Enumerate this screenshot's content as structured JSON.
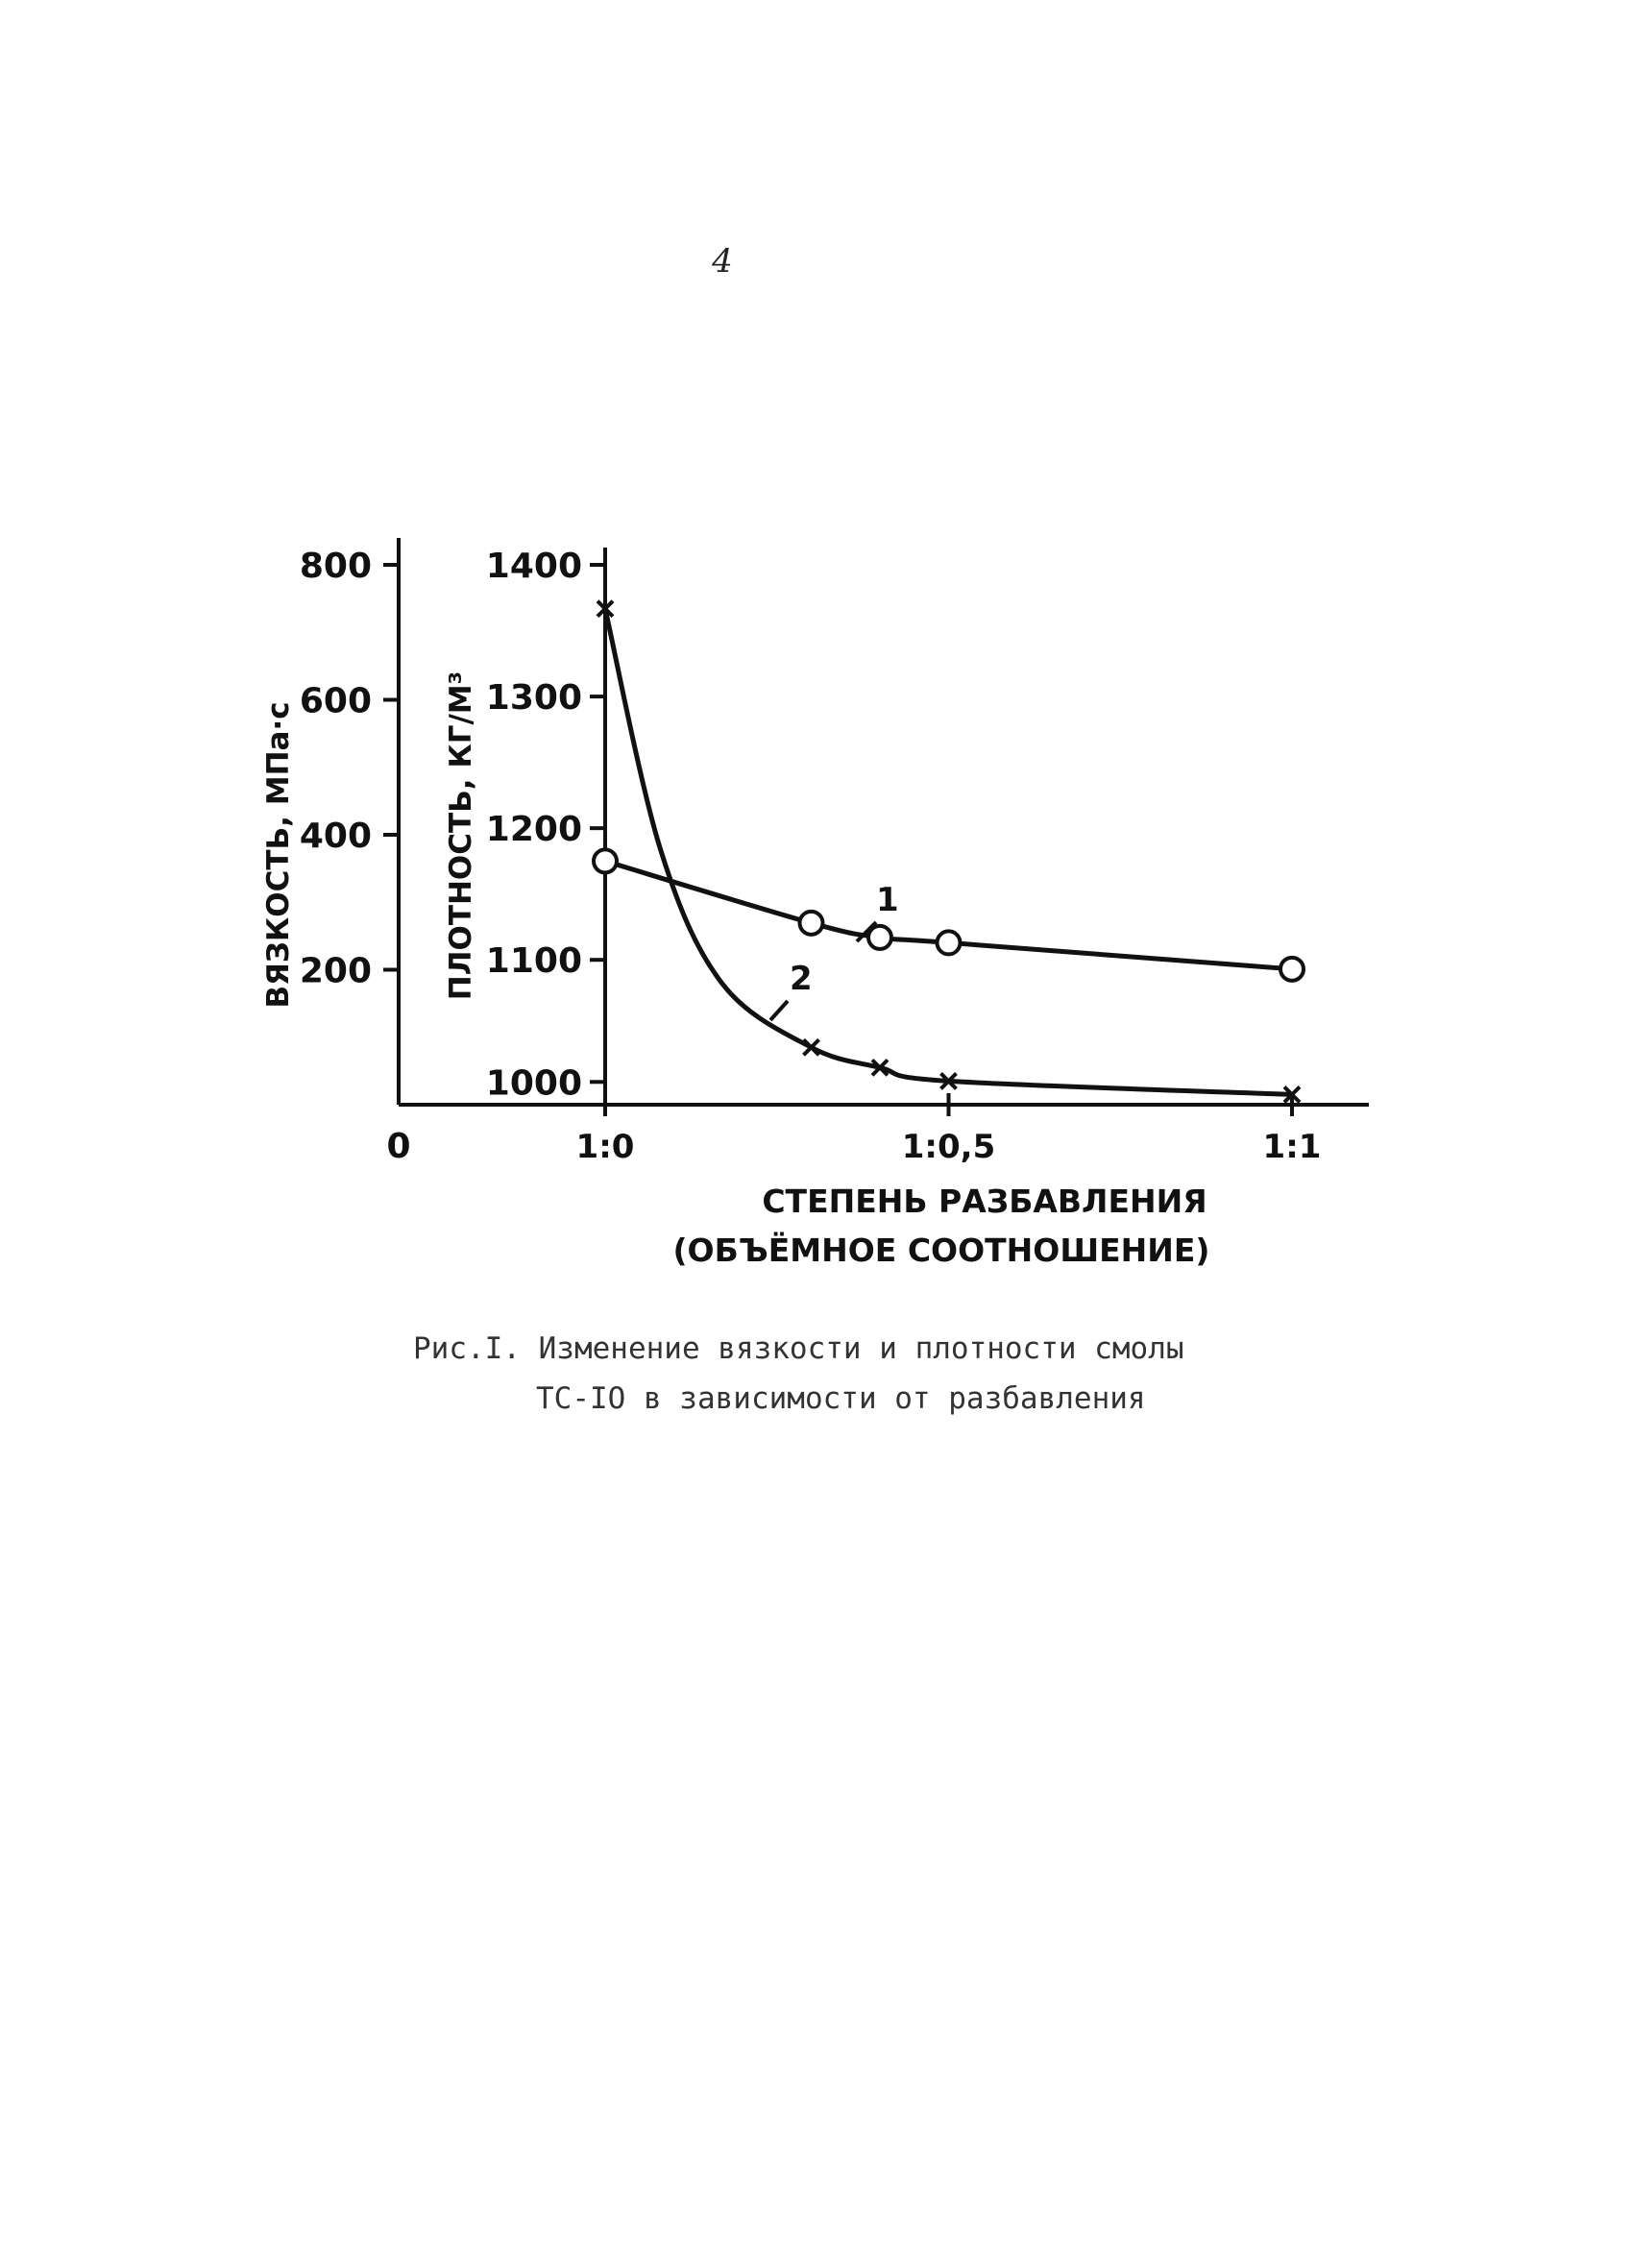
{
  "page": {
    "number": "4"
  },
  "caption": {
    "line1": "Рис.I. Изменение вязкости и плотности смолы",
    "line2": "ТС-IO в зависимости от разбавления"
  },
  "chart_data": {
    "type": "line",
    "xlabel_line1": "СТЕПЕНЬ РАЗБАВЛЕНИЯ",
    "xlabel_line2": "(ОБЪЁМНОЕ СООТНОШЕНИЕ)",
    "x_origin_label": "0",
    "x_ticks": [
      {
        "label": "1:0",
        "value": 0
      },
      {
        "label": "1:0,5",
        "value": 0.5
      },
      {
        "label": "1:1",
        "value": 1
      }
    ],
    "xlim": [
      -0.3,
      1.1
    ],
    "y_left": {
      "label": "ВЯЗКОСТЬ, МПа·с",
      "ticks": [
        200,
        400,
        600,
        800
      ],
      "lim": [
        0,
        800
      ]
    },
    "y_right": {
      "label": "ПЛОТНОСТЬ, КГ/М³",
      "ticks": [
        1000,
        1100,
        1200,
        1300,
        1400
      ],
      "lim": [
        990,
        1400
      ]
    },
    "series": [
      {
        "name": "1",
        "axis": "density",
        "marker": "circle",
        "x": [
          0,
          0.3,
          0.4,
          0.5,
          1.0
        ],
        "y": [
          1175,
          1128,
          1117,
          1113,
          1093
        ]
      },
      {
        "name": "2",
        "axis": "viscosity",
        "marker": "x",
        "x": [
          0,
          0.3,
          0.4,
          0.5,
          1.0
        ],
        "y": [
          735,
          85,
          55,
          35,
          15
        ]
      }
    ],
    "grid": false
  }
}
